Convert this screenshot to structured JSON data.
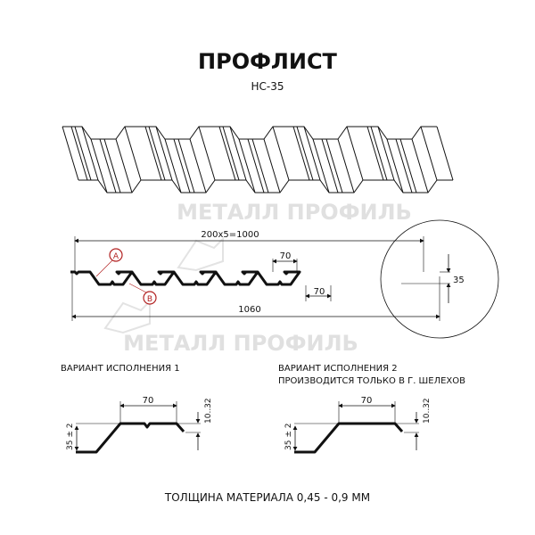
{
  "title": "ПРОФЛИСТ",
  "subtitle": "НС-35",
  "watermark": "МЕТАЛЛ ПРОФИЛЬ",
  "profile": {
    "dim_pitch": "200x5=1000",
    "dim_total": "1060",
    "dim_top": "70",
    "dim_bottom": "70",
    "dim_height": "35",
    "label_a": "A",
    "label_b": "B"
  },
  "variants": [
    {
      "title": "ВАРИАНТ ИСПОЛНЕНИЯ 1",
      "note": "",
      "dim_width": "70",
      "dim_height": "35 ± 2",
      "dim_lip": "10..32"
    },
    {
      "title": "ВАРИАНТ ИСПОЛНЕНИЯ 2",
      "note": "ПРОИЗВОДИТСЯ ТОЛЬКО В Г. ШЕЛЕХОВ",
      "dim_width": "70",
      "dim_height": "35 ± 2",
      "dim_lip": "10..32"
    }
  ],
  "footer": "ТОЛЩИНА МАТЕРИАЛА 0,45 - 0,9 ММ",
  "colors": {
    "line": "#111111",
    "marker": "#b22222",
    "watermark": "#d9d9d9"
  }
}
